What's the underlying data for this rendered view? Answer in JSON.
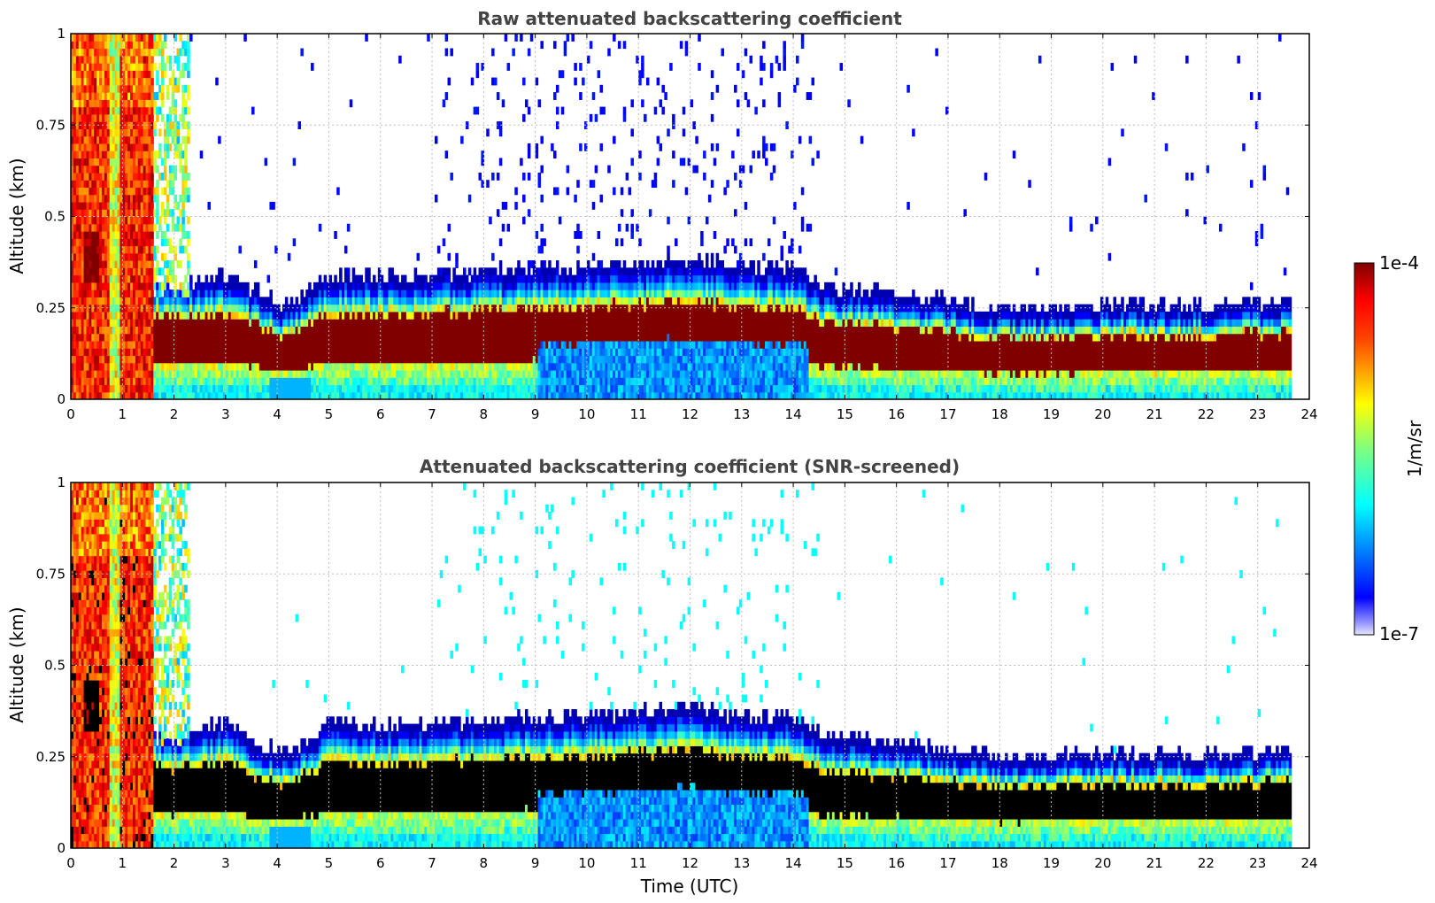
{
  "chart_data": [
    {
      "type": "heatmap",
      "title": "Raw attenuated backscattering coefficient",
      "xlabel": "",
      "ylabel": "Altitude (km)",
      "xlim": [
        0,
        24
      ],
      "ylim": [
        0,
        1
      ],
      "x_ticks": [
        "0",
        "1",
        "2",
        "3",
        "4",
        "5",
        "6",
        "7",
        "8",
        "9",
        "10",
        "11",
        "12",
        "13",
        "14",
        "15",
        "16",
        "17",
        "18",
        "19",
        "20",
        "21",
        "22",
        "23",
        "24"
      ],
      "y_ticks": [
        "0",
        "0.25",
        "0.5",
        "0.75",
        "1"
      ],
      "grid": true,
      "data_end_time": 23.65,
      "boundary_layer_top_km": [
        [
          0,
          0.3
        ],
        [
          1.5,
          0.3
        ],
        [
          2,
          0.28
        ],
        [
          3,
          0.3
        ],
        [
          4,
          0.22
        ],
        [
          4.5,
          0.25
        ],
        [
          5,
          0.3
        ],
        [
          7,
          0.3
        ],
        [
          9,
          0.32
        ],
        [
          11,
          0.33
        ],
        [
          12,
          0.35
        ],
        [
          13,
          0.32
        ],
        [
          14,
          0.32
        ],
        [
          14.5,
          0.27
        ],
        [
          16,
          0.25
        ],
        [
          18,
          0.21
        ],
        [
          20,
          0.22
        ],
        [
          22,
          0.22
        ],
        [
          23.65,
          0.23
        ]
      ],
      "high_noise_region": {
        "x_start": 7,
        "x_end": 14.5,
        "y_start": 0.35,
        "y_end": 1.0
      }
    },
    {
      "type": "heatmap",
      "title": "Attenuated backscattering coefficient (SNR-screened)",
      "xlabel": "Time (UTC)",
      "ylabel": "Altitude (km)",
      "xlim": [
        0,
        24
      ],
      "ylim": [
        0,
        1
      ],
      "x_ticks": [
        "0",
        "1",
        "2",
        "3",
        "4",
        "5",
        "6",
        "7",
        "8",
        "9",
        "10",
        "11",
        "12",
        "13",
        "14",
        "15",
        "16",
        "17",
        "18",
        "19",
        "20",
        "21",
        "22",
        "23",
        "24"
      ],
      "y_ticks": [
        "0",
        "0.25",
        "0.5",
        "0.75",
        "1"
      ],
      "grid": true,
      "data_end_time": 23.65,
      "saturated_color": "#000000"
    }
  ],
  "colorbar": {
    "label": "1/m/sr",
    "max_label": "1e-4",
    "min_label": "1e-7",
    "colormap": "jet",
    "scale": "log",
    "range": [
      1e-07,
      0.0001
    ]
  },
  "colors": {
    "title": "#444444",
    "grid": "#bfbfbf",
    "saturated": "#000000"
  }
}
